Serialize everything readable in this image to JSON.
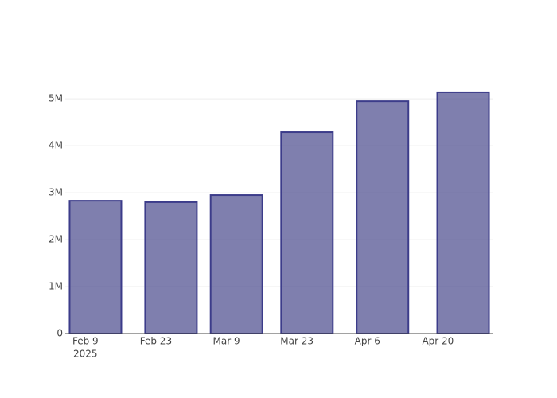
{
  "chart_data": {
    "type": "bar",
    "x": [
      "2025-02-11",
      "2025-02-26",
      "2025-03-11",
      "2025-03-25",
      "2025-04-09",
      "2025-04-25"
    ],
    "values": [
      2830000,
      2800000,
      2950000,
      4290000,
      4950000,
      5140000
    ],
    "color": "#48488c",
    "edge_color": "#3c3c8a",
    "xlim": [
      "2025-02-05",
      "2025-05-01"
    ],
    "xticks": [
      {
        "value": "2025-02-09",
        "label": "Feb 9"
      },
      {
        "value": "2025-02-23",
        "label": "Feb 23"
      },
      {
        "value": "2025-03-09",
        "label": "Mar 9"
      },
      {
        "value": "2025-03-23",
        "label": "Mar 23"
      },
      {
        "value": "2025-04-06",
        "label": "Apr 6"
      },
      {
        "value": "2025-04-20",
        "label": "Apr 20"
      }
    ],
    "x_year_label": "2025",
    "ylim": [
      0,
      5410000
    ],
    "yticks": [
      0,
      {
        "value": 1000000,
        "label": "1M"
      },
      {
        "value": 2000000,
        "label": "2M"
      },
      {
        "value": 3000000,
        "label": "3M"
      },
      {
        "value": 4000000,
        "label": "4M"
      },
      {
        "value": 5000000,
        "label": "5M"
      }
    ],
    "grid": true
  }
}
